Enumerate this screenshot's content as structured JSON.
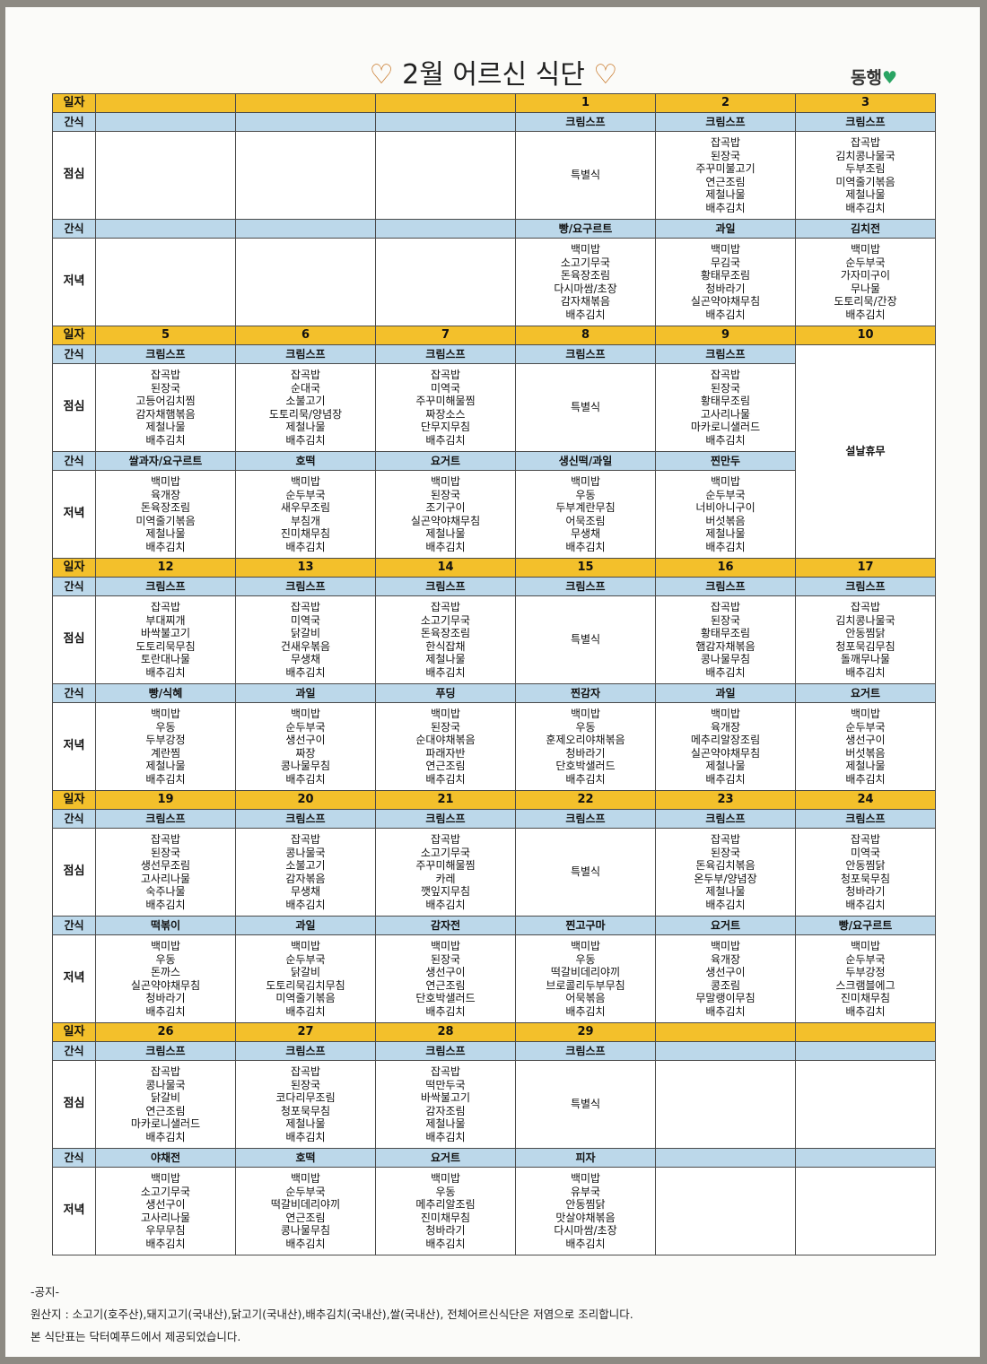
{
  "title": "2월 어르신 식단",
  "brand": "동행",
  "weeks": [
    {
      "dates": [
        "",
        "",
        "",
        "1",
        "2",
        "3"
      ],
      "date_label": "일자",
      "snack_label": "간식",
      "lunch_label": "점심",
      "snack2_label": "간식",
      "dinner_label": "저녁",
      "am_snack": [
        "",
        "",
        "",
        "크림스프",
        "크림스프",
        "크림스프"
      ],
      "lunch": [
        [],
        [],
        [],
        [
          "특별식"
        ],
        [
          "잡곡밥",
          "된장국",
          "주꾸미불고기",
          "연근조림",
          "제철나물",
          "배추김치"
        ],
        [
          "잡곡밥",
          "김치콩나물국",
          "두부조림",
          "미역줄기볶음",
          "제철나물",
          "배추김치"
        ]
      ],
      "pm_snack": [
        "",
        "",
        "",
        "빵/요구르트",
        "과일",
        "김치전"
      ],
      "dinner": [
        [],
        [],
        [],
        [
          "백미밥",
          "소고기무국",
          "돈육장조림",
          "다시마쌈/초장",
          "감자채볶음",
          "배추김치"
        ],
        [
          "백미밥",
          "무김국",
          "황태무조림",
          "청바라기",
          "실곤약야채무침",
          "배추김치"
        ],
        [
          "백미밥",
          "순두부국",
          "가자미구이",
          "무나물",
          "도토리묵/간장",
          "배추김치"
        ]
      ]
    },
    {
      "dates": [
        "5",
        "6",
        "7",
        "8",
        "9",
        "10"
      ],
      "date_label": "일자",
      "snack_label": "간식",
      "lunch_label": "점심",
      "snack2_label": "간식",
      "dinner_label": "저녁",
      "am_snack": [
        "크림스프",
        "크림스프",
        "크림스프",
        "크림스프",
        "크림스프",
        ""
      ],
      "lunch": [
        [
          "잡곡밥",
          "된장국",
          "고등어김치찜",
          "감자채햄볶음",
          "제철나물",
          "배추김치"
        ],
        [
          "잡곡밥",
          "순대국",
          "소불고기",
          "도토리묵/양념장",
          "제철나물",
          "배추김치"
        ],
        [
          "잡곡밥",
          "미역국",
          "주꾸미해물찜",
          "짜장소스",
          "단무지무침",
          "배추김치"
        ],
        [
          "특별식"
        ],
        [
          "잡곡밥",
          "된장국",
          "황태무조림",
          "고사리나물",
          "마카로니샐러드",
          "배추김치"
        ],
        []
      ],
      "pm_snack": [
        "쌀과자/요구르트",
        "호떡",
        "요거트",
        "생신떡/과일",
        "찐만두",
        ""
      ],
      "dinner": [
        [
          "백미밥",
          "육개장",
          "돈육장조림",
          "미역줄기볶음",
          "제철나물",
          "배추김치"
        ],
        [
          "백미밥",
          "순두부국",
          "새우무조림",
          "부침개",
          "진미채무침",
          "배추김치"
        ],
        [
          "백미밥",
          "된장국",
          "조기구이",
          "실곤약야채무침",
          "제철나물",
          "배추김치"
        ],
        [
          "백미밥",
          "우동",
          "두부계란무침",
          "어묵조림",
          "무생채",
          "배추김치"
        ],
        [
          "백미밥",
          "순두부국",
          "너비아니구이",
          "버섯볶음",
          "제철나물",
          "배추김치"
        ],
        []
      ],
      "holiday": "설날휴무"
    },
    {
      "dates": [
        "12",
        "13",
        "14",
        "15",
        "16",
        "17"
      ],
      "date_label": "일자",
      "snack_label": "간식",
      "lunch_label": "점심",
      "snack2_label": "간식",
      "dinner_label": "저녁",
      "am_snack": [
        "크림스프",
        "크림스프",
        "크림스프",
        "크림스프",
        "크림스프",
        "크림스프"
      ],
      "lunch": [
        [
          "잡곡밥",
          "부대찌개",
          "바싹불고기",
          "도토리묵무침",
          "토란대나물",
          "배추김치"
        ],
        [
          "잡곡밥",
          "미역국",
          "닭갈비",
          "건새우볶음",
          "무생채",
          "배추김치"
        ],
        [
          "잡곡밥",
          "소고기무국",
          "돈육장조림",
          "한식잡채",
          "제철나물",
          "배추김치"
        ],
        [
          "특별식"
        ],
        [
          "잡곡밥",
          "된장국",
          "황태무조림",
          "햄감자채볶음",
          "콩나물무침",
          "배추김치"
        ],
        [
          "잡곡밥",
          "김치콩나물국",
          "안동찜닭",
          "청포묵김무침",
          "돌깨무나물",
          "배추김치"
        ]
      ],
      "pm_snack": [
        "빵/식혜",
        "과일",
        "푸딩",
        "찐감자",
        "과일",
        "요거트"
      ],
      "dinner": [
        [
          "백미밥",
          "우동",
          "두부강정",
          "계란찜",
          "제철나물",
          "배추김치"
        ],
        [
          "백미밥",
          "순두부국",
          "생선구이",
          "짜장",
          "콩나물무침",
          "배추김치"
        ],
        [
          "백미밥",
          "된장국",
          "순대야채볶음",
          "파래자반",
          "연근조림",
          "배추김치"
        ],
        [
          "백미밥",
          "우동",
          "훈제오리야채볶음",
          "청바라기",
          "단호박샐러드",
          "배추김치"
        ],
        [
          "백미밥",
          "육개장",
          "메추리알장조림",
          "실곤약야채무침",
          "제철나물",
          "배추김치"
        ],
        [
          "백미밥",
          "순두부국",
          "생선구이",
          "버섯볶음",
          "제철나물",
          "배추김치"
        ]
      ]
    },
    {
      "dates": [
        "19",
        "20",
        "21",
        "22",
        "23",
        "24"
      ],
      "date_label": "일자",
      "snack_label": "간식",
      "lunch_label": "점심",
      "snack2_label": "간식",
      "dinner_label": "저녁",
      "am_snack": [
        "크림스프",
        "크림스프",
        "크림스프",
        "크림스프",
        "크림스프",
        "크림스프"
      ],
      "lunch": [
        [
          "잡곡밥",
          "된장국",
          "생선무조림",
          "고사리나물",
          "숙주나물",
          "배추김치"
        ],
        [
          "잡곡밥",
          "콩나물국",
          "소불고기",
          "감자볶음",
          "무생채",
          "배추김치"
        ],
        [
          "잡곡밥",
          "소고기무국",
          "주꾸미해물찜",
          "카레",
          "깻잎지무침",
          "배추김치"
        ],
        [
          "특별식"
        ],
        [
          "잡곡밥",
          "된장국",
          "돈육김치볶음",
          "온두부/양념장",
          "제철나물",
          "배추김치"
        ],
        [
          "잡곡밥",
          "미역국",
          "안동찜닭",
          "청포묵무침",
          "청바라기",
          "배추김치"
        ]
      ],
      "pm_snack": [
        "떡볶이",
        "과일",
        "감자전",
        "찐고구마",
        "요거트",
        "빵/요구르트"
      ],
      "dinner": [
        [
          "백미밥",
          "우동",
          "돈까스",
          "실곤약야채무침",
          "청바라기",
          "배추김치"
        ],
        [
          "백미밥",
          "순두부국",
          "닭갈비",
          "도토리묵김치무침",
          "미역줄기볶음",
          "배추김치"
        ],
        [
          "백미밥",
          "된장국",
          "생선구이",
          "연근조림",
          "단호박샐러드",
          "배추김치"
        ],
        [
          "백미밥",
          "우동",
          "떡갈비데리야끼",
          "브로콜리두부무침",
          "어묵볶음",
          "배추김치"
        ],
        [
          "백미밥",
          "육개장",
          "생선구이",
          "콩조림",
          "무말랭이무침",
          "배추김치"
        ],
        [
          "백미밥",
          "순두부국",
          "두부강정",
          "스크램블에그",
          "진미채무침",
          "배추김치"
        ]
      ]
    },
    {
      "dates": [
        "26",
        "27",
        "28",
        "29",
        "",
        ""
      ],
      "date_label": "일자",
      "snack_label": "간식",
      "lunch_label": "점심",
      "snack2_label": "간식",
      "dinner_label": "저녁",
      "am_snack": [
        "크림스프",
        "크림스프",
        "크림스프",
        "크림스프",
        "",
        ""
      ],
      "lunch": [
        [
          "잡곡밥",
          "콩나물국",
          "닭갈비",
          "연근조림",
          "마카로니샐러드",
          "배추김치"
        ],
        [
          "잡곡밥",
          "된장국",
          "코다리무조림",
          "청포묵무침",
          "제철나물",
          "배추김치"
        ],
        [
          "잡곡밥",
          "떡만두국",
          "바싹불고기",
          "감자조림",
          "제철나물",
          "배추김치"
        ],
        [
          "특별식"
        ],
        [],
        []
      ],
      "pm_snack": [
        "야채전",
        "호떡",
        "요거트",
        "피자",
        "",
        ""
      ],
      "dinner": [
        [
          "백미밥",
          "소고기무국",
          "생선구이",
          "고사리나물",
          "우무무침",
          "배추김치"
        ],
        [
          "백미밥",
          "순두부국",
          "떡갈비데리야끼",
          "연근조림",
          "콩나물무침",
          "배추김치"
        ],
        [
          "백미밥",
          "우동",
          "메추리알조림",
          "진미채무침",
          "청바라기",
          "배추김치"
        ],
        [
          "백미밥",
          "유부국",
          "안동찜닭",
          "맛살야채볶음",
          "다시마쌈/초장",
          "배추김치"
        ],
        [],
        []
      ]
    }
  ],
  "date_colors": {
    "sat": "#1c7fb5",
    "sun": "#c8452b"
  },
  "notice": {
    "heading": "-공지-",
    "origin": "원산지 : 소고기(호주산),돼지고기(국내산),닭고기(국내산),배추김치(국내산),쌀(국내산), 전체어르신식단은 저염으로 조리합니다.",
    "provider": "본 식단표는 닥터예푸드에서 제공되었습니다."
  }
}
